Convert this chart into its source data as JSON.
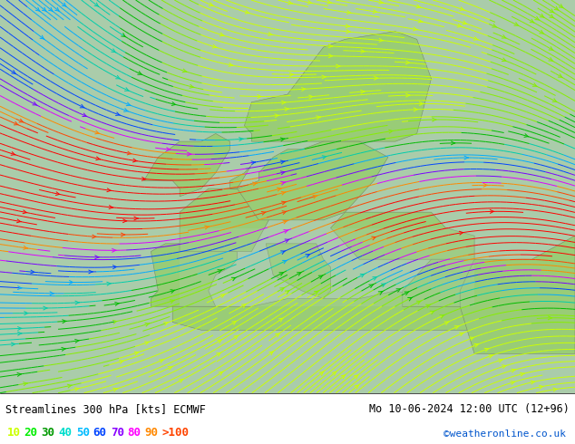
{
  "title_left": "Streamlines 300 hPa [kts] ECMWF",
  "title_right": "Mo 10-06-2024 12:00 UTC (12+96)",
  "credit": "©weatheronline.co.uk",
  "legend_values": [
    "10",
    "20",
    "30",
    "40",
    "50",
    "60",
    "70",
    "80",
    "90",
    ">100"
  ],
  "legend_colors": [
    "#ccff00",
    "#00ee00",
    "#009900",
    "#00ddcc",
    "#00bbff",
    "#0044ff",
    "#8800ff",
    "#ff00ff",
    "#ff8800",
    "#ff4400"
  ],
  "map_bg": "#aaccaa",
  "land_color": "#99cc77",
  "figsize": [
    6.34,
    4.9
  ],
  "dpi": 100,
  "streamline_colors": [
    "#ccff00",
    "#88ee00",
    "#00bb00",
    "#00ccaa",
    "#00aaff",
    "#0044ff",
    "#7700ff",
    "#dd00ff",
    "#ff8800",
    "#ff4400",
    "#ff0000"
  ],
  "speed_bounds": [
    0,
    10,
    20,
    30,
    40,
    50,
    60,
    70,
    80,
    90,
    100,
    300
  ]
}
